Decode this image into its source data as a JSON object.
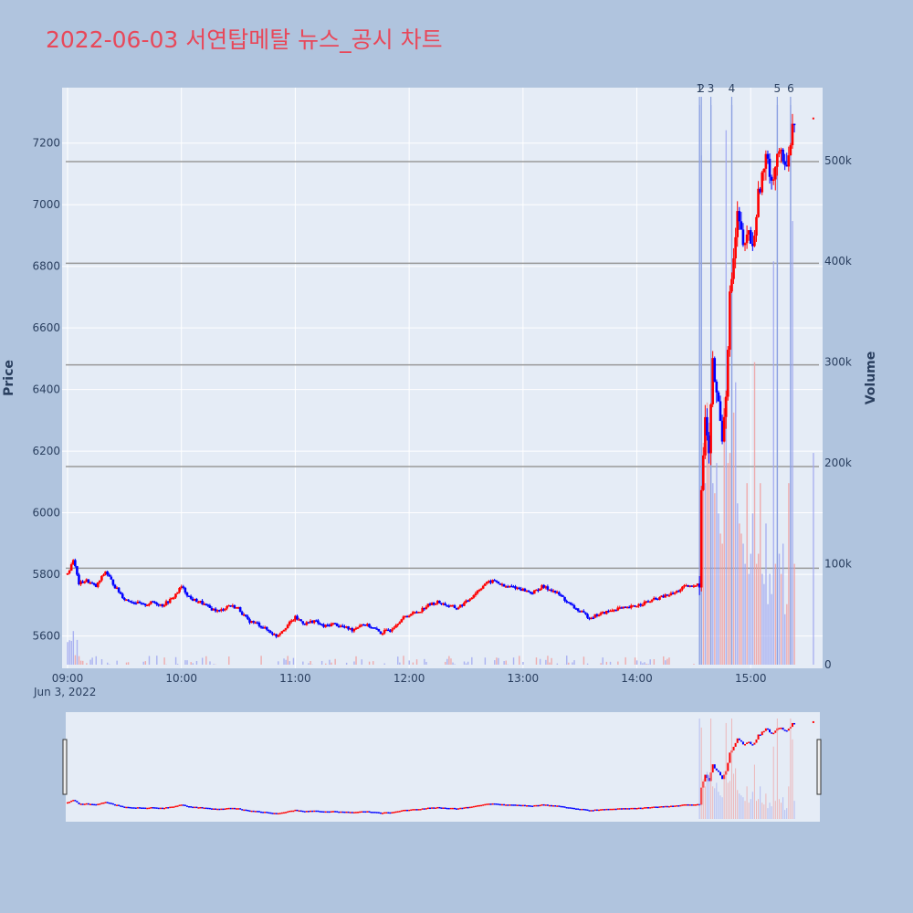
{
  "chart_data": {
    "type": "candlestick",
    "title": "2022-06-03 서연탑메탈 뉴스_공시 차트",
    "ylabel": "Price",
    "y2label": "Volume",
    "date_label": "Jun 3, 2022",
    "x_ticks": [
      "09:00",
      "10:00",
      "11:00",
      "12:00",
      "13:00",
      "14:00",
      "15:00"
    ],
    "y_ticks": [
      5600,
      5800,
      6000,
      6200,
      6400,
      6600,
      6800,
      7000,
      7200
    ],
    "y2_ticks": [
      "0",
      "100k",
      "200k",
      "300k",
      "400k",
      "500k"
    ],
    "y_range": [
      5495,
      7380
    ],
    "y2_range": [
      0,
      565000
    ],
    "x_range_min": [
      0,
      395
    ],
    "horizontal_levels": [
      5820,
      6150,
      6480,
      6810,
      7140
    ],
    "news_markers": [
      {
        "label": "1",
        "minute": 333
      },
      {
        "label": "2",
        "minute": 334
      },
      {
        "label": "3",
        "minute": 339
      },
      {
        "label": "4",
        "minute": 350
      },
      {
        "label": "5",
        "minute": 374
      },
      {
        "label": "6",
        "minute": 381
      }
    ],
    "price_path": [
      [
        0,
        5800
      ],
      [
        3,
        5850
      ],
      [
        6,
        5770
      ],
      [
        10,
        5780
      ],
      [
        15,
        5760
      ],
      [
        20,
        5810
      ],
      [
        25,
        5760
      ],
      [
        30,
        5720
      ],
      [
        35,
        5710
      ],
      [
        40,
        5700
      ],
      [
        45,
        5710
      ],
      [
        50,
        5700
      ],
      [
        55,
        5720
      ],
      [
        60,
        5760
      ],
      [
        65,
        5720
      ],
      [
        70,
        5710
      ],
      [
        75,
        5690
      ],
      [
        80,
        5680
      ],
      [
        85,
        5700
      ],
      [
        90,
        5690
      ],
      [
        95,
        5650
      ],
      [
        100,
        5640
      ],
      [
        105,
        5620
      ],
      [
        110,
        5600
      ],
      [
        115,
        5630
      ],
      [
        120,
        5660
      ],
      [
        125,
        5640
      ],
      [
        130,
        5650
      ],
      [
        135,
        5630
      ],
      [
        140,
        5640
      ],
      [
        145,
        5630
      ],
      [
        150,
        5620
      ],
      [
        155,
        5640
      ],
      [
        160,
        5630
      ],
      [
        165,
        5610
      ],
      [
        170,
        5620
      ],
      [
        175,
        5650
      ],
      [
        180,
        5670
      ],
      [
        185,
        5680
      ],
      [
        190,
        5700
      ],
      [
        195,
        5710
      ],
      [
        200,
        5700
      ],
      [
        205,
        5690
      ],
      [
        210,
        5710
      ],
      [
        215,
        5740
      ],
      [
        220,
        5770
      ],
      [
        225,
        5780
      ],
      [
        230,
        5760
      ],
      [
        235,
        5760
      ],
      [
        240,
        5750
      ],
      [
        245,
        5740
      ],
      [
        250,
        5760
      ],
      [
        255,
        5750
      ],
      [
        260,
        5730
      ],
      [
        265,
        5700
      ],
      [
        270,
        5680
      ],
      [
        275,
        5660
      ],
      [
        280,
        5670
      ],
      [
        285,
        5680
      ],
      [
        290,
        5690
      ],
      [
        295,
        5690
      ],
      [
        300,
        5700
      ],
      [
        305,
        5710
      ],
      [
        310,
        5720
      ],
      [
        315,
        5730
      ],
      [
        320,
        5740
      ],
      [
        325,
        5760
      ],
      [
        330,
        5760
      ],
      [
        333,
        5780
      ],
      [
        334,
        6080
      ],
      [
        336,
        6300
      ],
      [
        338,
        6200
      ],
      [
        340,
        6480
      ],
      [
        343,
        6350
      ],
      [
        345,
        6250
      ],
      [
        347,
        6400
      ],
      [
        349,
        6700
      ],
      [
        351,
        6820
      ],
      [
        353,
        6960
      ],
      [
        355,
        6900
      ],
      [
        357,
        6850
      ],
      [
        359,
        6920
      ],
      [
        361,
        6850
      ],
      [
        363,
        6980
      ],
      [
        365,
        7070
      ],
      [
        367,
        7110
      ],
      [
        369,
        7160
      ],
      [
        371,
        7080
      ],
      [
        373,
        7130
      ],
      [
        375,
        7180
      ],
      [
        377,
        7120
      ],
      [
        379,
        7150
      ],
      [
        381,
        7200
      ],
      [
        383,
        7280
      ]
    ],
    "volume_spikes": [
      [
        333,
        555000
      ],
      [
        334,
        505000
      ],
      [
        335,
        220000
      ],
      [
        336,
        180000
      ],
      [
        337,
        260000
      ],
      [
        338,
        240000
      ],
      [
        339,
        555000
      ],
      [
        340,
        180000
      ],
      [
        341,
        170000
      ],
      [
        342,
        200000
      ],
      [
        343,
        150000
      ],
      [
        344,
        130000
      ],
      [
        345,
        120000
      ],
      [
        346,
        265000
      ],
      [
        347,
        530000
      ],
      [
        348,
        200000
      ],
      [
        349,
        210000
      ],
      [
        350,
        555000
      ],
      [
        351,
        250000
      ],
      [
        352,
        280000
      ],
      [
        353,
        160000
      ],
      [
        354,
        140000
      ],
      [
        355,
        130000
      ],
      [
        356,
        120000
      ],
      [
        357,
        100000
      ],
      [
        358,
        180000
      ],
      [
        359,
        90000
      ],
      [
        360,
        110000
      ],
      [
        361,
        150000
      ],
      [
        362,
        300000
      ],
      [
        363,
        100000
      ],
      [
        364,
        110000
      ],
      [
        365,
        180000
      ],
      [
        366,
        90000
      ],
      [
        367,
        80000
      ],
      [
        368,
        140000
      ],
      [
        369,
        60000
      ],
      [
        370,
        90000
      ],
      [
        371,
        70000
      ],
      [
        372,
        400000
      ],
      [
        373,
        100000
      ],
      [
        374,
        555000
      ],
      [
        375,
        110000
      ],
      [
        376,
        90000
      ],
      [
        377,
        120000
      ],
      [
        378,
        50000
      ],
      [
        379,
        60000
      ],
      [
        380,
        180000
      ],
      [
        381,
        555000
      ],
      [
        382,
        440000
      ],
      [
        383,
        100000
      ],
      [
        393,
        210000
      ]
    ],
    "colors": {
      "up": "#ff0000",
      "down": "#0000ff",
      "title": "#e8485a",
      "plot_bg": "#e5ecf6",
      "page_bg": "#b0c4de"
    }
  }
}
